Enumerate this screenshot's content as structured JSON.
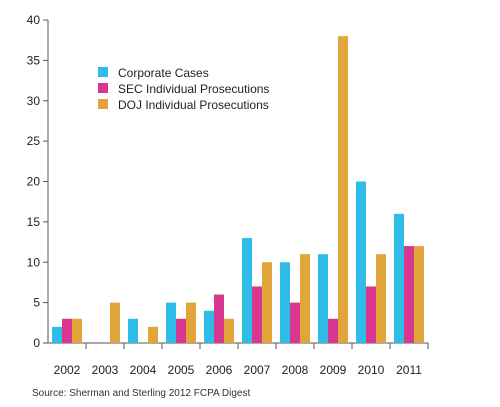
{
  "chart_data": {
    "type": "bar",
    "categories": [
      "2002",
      "2003",
      "2004",
      "2005",
      "2006",
      "2007",
      "2008",
      "2009",
      "2010",
      "2011"
    ],
    "series": [
      {
        "name": "Corporate Cases",
        "color": "#2fbde8",
        "values": [
          2,
          0,
          3,
          5,
          4,
          13,
          10,
          11,
          20,
          16
        ]
      },
      {
        "name": "SEC Individual Prosecutions",
        "color": "#d8368f",
        "values": [
          3,
          0,
          0,
          3,
          6,
          7,
          5,
          3,
          7,
          12
        ]
      },
      {
        "name": "DOJ Individual Prosecutions",
        "color": "#e2a53c",
        "values": [
          3,
          5,
          2,
          5,
          3,
          10,
          11,
          38,
          11,
          12
        ]
      }
    ],
    "yticks": [
      0,
      5,
      10,
      15,
      20,
      25,
      30,
      35,
      40
    ],
    "ylim": [
      0,
      40
    ],
    "grid": false,
    "legend_position": "top-left",
    "source": "Source: Sherman and Sterling 2012 FCPA Digest"
  }
}
